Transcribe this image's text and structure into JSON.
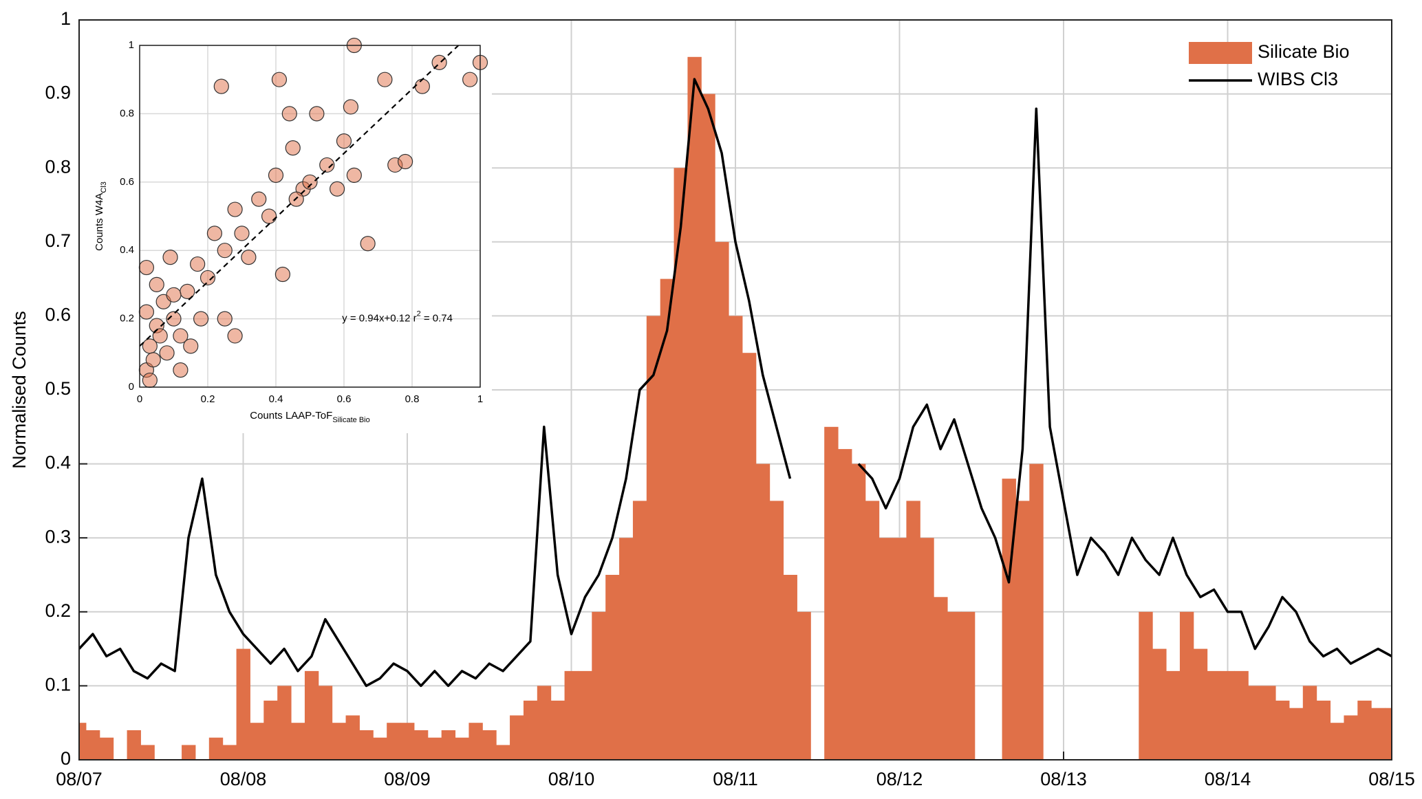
{
  "chart_data": [
    {
      "type": "line",
      "ylabel": "Normalised Counts",
      "x": [
        0,
        2,
        4,
        6,
        8,
        10,
        12,
        14,
        16,
        18,
        20,
        22,
        24,
        26,
        28,
        30,
        32,
        34,
        36,
        38,
        40,
        42,
        44,
        46,
        48,
        50,
        52,
        54,
        56,
        58,
        60,
        62,
        64,
        66,
        68,
        70,
        72,
        74,
        76,
        78,
        80,
        82,
        84,
        86,
        88,
        90,
        92,
        94,
        96,
        98,
        100,
        102,
        104,
        106,
        108,
        110,
        112,
        114,
        116,
        118,
        120,
        122,
        124,
        126,
        128,
        130,
        132,
        134,
        136,
        138,
        140,
        142,
        144,
        146,
        148,
        150,
        152,
        154,
        156,
        158,
        160,
        162,
        164,
        166,
        168,
        170,
        172,
        174,
        176,
        178,
        180,
        182,
        184,
        186,
        188,
        190,
        192
      ],
      "xlim": [
        0,
        192
      ],
      "xticks": [
        {
          "value": 0,
          "label": "08/07"
        },
        {
          "value": 24,
          "label": "08/08"
        },
        {
          "value": 48,
          "label": "08/09"
        },
        {
          "value": 72,
          "label": "08/10"
        },
        {
          "value": 96,
          "label": "08/11"
        },
        {
          "value": 120,
          "label": "08/12"
        },
        {
          "value": 144,
          "label": "08/13"
        },
        {
          "value": 168,
          "label": "08/14"
        },
        {
          "value": 192,
          "label": "08/15"
        }
      ],
      "ylim": [
        0,
        1
      ],
      "yticks": [
        0,
        0.1,
        0.2,
        0.3,
        0.4,
        0.5,
        0.6,
        0.7,
        0.8,
        0.9,
        1
      ],
      "grid": true,
      "legend": "upper-right",
      "series": [
        {
          "name": "Silicate Bio",
          "kind": "bar",
          "color": "#e07048",
          "values": [
            0.05,
            0.04,
            0.03,
            0,
            0.04,
            0.02,
            0,
            0,
            0.02,
            0,
            0.03,
            0.02,
            0.15,
            0.05,
            0.08,
            0.1,
            0.05,
            0.12,
            0.1,
            0.05,
            0.06,
            0.04,
            0.03,
            0.05,
            0.05,
            0.04,
            0.03,
            0.04,
            0.03,
            0.05,
            0.04,
            0.02,
            0.06,
            0.08,
            0.1,
            0.08,
            0.12,
            0.12,
            0.2,
            0.25,
            0.3,
            0.35,
            0.6,
            0.65,
            0.8,
            0.95,
            0.9,
            0.7,
            0.6,
            0.55,
            0.4,
            0.35,
            0.25,
            0.2,
            0,
            0.45,
            0.42,
            0.4,
            0.35,
            0.3,
            0.3,
            0.35,
            0.3,
            0.22,
            0.2,
            0.2,
            0,
            0,
            0.38,
            0.35,
            0.4,
            0,
            0,
            0,
            0,
            0,
            0,
            0,
            0.2,
            0.15,
            0.12,
            0.2,
            0.15,
            0.12,
            0.12,
            0.12,
            0.1,
            0.1,
            0.08,
            0.07,
            0.1,
            0.08,
            0.05,
            0.06,
            0.08,
            0.07,
            0.07
          ]
        },
        {
          "name": "WIBS Cl3",
          "kind": "line",
          "color": "#000000",
          "values": [
            0.15,
            0.17,
            0.14,
            0.15,
            0.12,
            0.11,
            0.13,
            0.12,
            0.3,
            0.38,
            0.25,
            0.2,
            0.17,
            0.15,
            0.13,
            0.15,
            0.12,
            0.14,
            0.19,
            0.16,
            0.13,
            0.1,
            0.11,
            0.13,
            0.12,
            0.1,
            0.12,
            0.1,
            0.12,
            0.11,
            0.13,
            0.12,
            0.14,
            0.16,
            0.45,
            0.25,
            0.17,
            0.22,
            0.25,
            0.3,
            0.38,
            0.5,
            0.52,
            0.58,
            0.72,
            0.92,
            0.88,
            0.82,
            0.7,
            0.62,
            0.52,
            0.45,
            0.38,
            null,
            null,
            null,
            null,
            0.4,
            0.38,
            0.34,
            0.38,
            0.45,
            0.48,
            0.42,
            0.46,
            0.4,
            0.34,
            0.3,
            0.24,
            0.42,
            0.88,
            0.45,
            0.35,
            0.25,
            0.3,
            0.28,
            0.25,
            0.3,
            0.27,
            0.25,
            0.3,
            0.25,
            0.22,
            0.23,
            0.2,
            0.2,
            0.15,
            0.18,
            0.22,
            0.2,
            0.16,
            0.14,
            0.15,
            0.13,
            0.14,
            0.15,
            0.14
          ]
        }
      ]
    },
    {
      "type": "scatter",
      "xlabel": {
        "text": "Counts LAAP-ToF",
        "sub": "Silicate Bio"
      },
      "ylabel": {
        "text": "Counts W4A",
        "sub": "Cl3"
      },
      "xlim": [
        0,
        1
      ],
      "ylim": [
        0,
        1
      ],
      "xticks": [
        0,
        0.2,
        0.4,
        0.6,
        0.8,
        1
      ],
      "yticks": [
        0,
        0.2,
        0.4,
        0.6,
        0.8,
        1
      ],
      "grid": true,
      "color": "#e07048",
      "x": [
        0.02,
        0.03,
        0.05,
        0.02,
        0.06,
        0.08,
        0.1,
        0.04,
        0.07,
        0.12,
        0.15,
        0.02,
        0.05,
        0.09,
        0.14,
        0.18,
        0.2,
        0.17,
        0.22,
        0.25,
        0.28,
        0.3,
        0.32,
        0.35,
        0.38,
        0.4,
        0.42,
        0.44,
        0.45,
        0.48,
        0.5,
        0.52,
        0.55,
        0.58,
        0.6,
        0.62,
        0.63,
        0.67,
        0.72,
        0.75,
        0.78,
        0.83,
        0.88,
        0.97,
        1,
        0.63,
        0.24,
        0.41,
        0.46,
        0.28,
        0.25,
        0.1,
        0.12,
        0.03
      ],
      "y": [
        0.05,
        0.12,
        0.18,
        0.22,
        0.15,
        0.1,
        0.2,
        0.08,
        0.25,
        0.15,
        0.12,
        0.35,
        0.3,
        0.38,
        0.28,
        0.2,
        0.32,
        0.36,
        0.45,
        0.4,
        0.52,
        0.45,
        0.38,
        0.55,
        0.5,
        0.62,
        0.33,
        0.8,
        0.7,
        0.58,
        0.6,
        0.8,
        0.65,
        0.58,
        0.72,
        0.82,
        0.62,
        0.42,
        0.9,
        0.65,
        0.66,
        0.88,
        0.95,
        0.9,
        0.95,
        1,
        0.88,
        0.9,
        0.55,
        0.15,
        0.2,
        0.27,
        0.05,
        0.02
      ],
      "fit": {
        "slope": 0.94,
        "intercept": 0.12
      },
      "annotation": {
        "text": "y = 0.94x+0.12  r",
        "sup": "2",
        "rest": " = 0.74"
      }
    }
  ]
}
